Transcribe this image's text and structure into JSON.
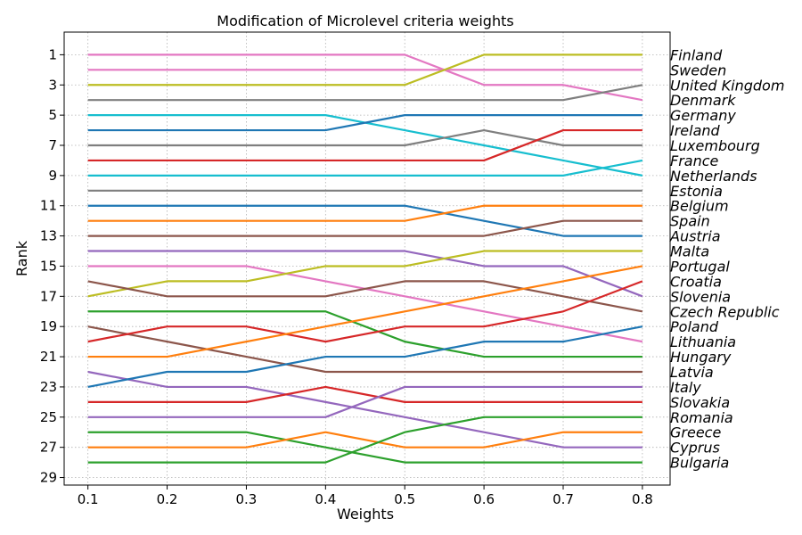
{
  "chart_data": {
    "type": "line",
    "title": "Modification of Microlevel criteria weights",
    "xlabel": "Weights",
    "ylabel": "Rank",
    "x": [
      0.1,
      0.2,
      0.3,
      0.4,
      0.5,
      0.6,
      0.7,
      0.8
    ],
    "xticks": [
      "0.1",
      "0.2",
      "0.3",
      "0.4",
      "0.5",
      "0.6",
      "0.7",
      "0.8"
    ],
    "yticks": [
      "1",
      "3",
      "5",
      "7",
      "9",
      "11",
      "13",
      "15",
      "17",
      "19",
      "21",
      "23",
      "25",
      "27",
      "29"
    ],
    "xlim": [
      0.07,
      0.835
    ],
    "ylim": [
      29.5,
      -0.5
    ],
    "y_inverted": true,
    "grid": true,
    "series": [
      {
        "color": "#e377c2",
        "values": [
          1,
          1,
          1,
          1,
          1,
          3,
          3,
          4
        ]
      },
      {
        "color": "#e377c2",
        "values": [
          2,
          2,
          2,
          2,
          2,
          2,
          2,
          2
        ]
      },
      {
        "color": "#bcbd22",
        "values": [
          3,
          3,
          3,
          3,
          3,
          1,
          1,
          1
        ]
      },
      {
        "color": "#7f7f7f",
        "values": [
          4,
          4,
          4,
          4,
          4,
          4,
          4,
          3
        ]
      },
      {
        "color": "#17becf",
        "values": [
          5,
          5,
          5,
          5,
          6,
          7,
          8,
          9
        ]
      },
      {
        "color": "#1f77b4",
        "values": [
          6,
          6,
          6,
          6,
          5,
          5,
          5,
          5
        ]
      },
      {
        "color": "#7f7f7f",
        "values": [
          7,
          7,
          7,
          7,
          7,
          6,
          7,
          7
        ]
      },
      {
        "color": "#d62728",
        "values": [
          8,
          8,
          8,
          8,
          8,
          8,
          6,
          6
        ]
      },
      {
        "color": "#17becf",
        "values": [
          9,
          9,
          9,
          9,
          9,
          9,
          9,
          8
        ]
      },
      {
        "color": "#7f7f7f",
        "values": [
          10,
          10,
          10,
          10,
          10,
          10,
          10,
          10
        ]
      },
      {
        "color": "#1f77b4",
        "values": [
          11,
          11,
          11,
          11,
          11,
          12,
          13,
          13
        ]
      },
      {
        "color": "#ff7f0e",
        "values": [
          12,
          12,
          12,
          12,
          12,
          11,
          11,
          11
        ]
      },
      {
        "color": "#8c564b",
        "values": [
          13,
          13,
          13,
          13,
          13,
          13,
          12,
          12
        ]
      },
      {
        "color": "#9467bd",
        "values": [
          14,
          14,
          14,
          14,
          14,
          15,
          15,
          17
        ]
      },
      {
        "color": "#e377c2",
        "values": [
          15,
          15,
          15,
          16,
          17,
          18,
          19,
          20
        ]
      },
      {
        "color": "#bcbd22",
        "values": [
          17,
          16,
          16,
          15,
          15,
          14,
          14,
          14
        ]
      },
      {
        "color": "#8c564b",
        "values": [
          16,
          17,
          17,
          17,
          16,
          16,
          17,
          18
        ]
      },
      {
        "color": "#2ca02c",
        "values": [
          18,
          18,
          18,
          18,
          20,
          21,
          21,
          21
        ]
      },
      {
        "color": "#8c564b",
        "values": [
          19,
          20,
          21,
          22,
          22,
          22,
          22,
          22
        ]
      },
      {
        "color": "#d62728",
        "values": [
          20,
          19,
          19,
          20,
          19,
          19,
          18,
          16
        ]
      },
      {
        "color": "#ff7f0e",
        "values": [
          21,
          21,
          20,
          19,
          18,
          17,
          16,
          15
        ]
      },
      {
        "color": "#9467bd",
        "values": [
          22,
          23,
          23,
          24,
          25,
          26,
          27,
          27
        ]
      },
      {
        "color": "#1f77b4",
        "values": [
          23,
          22,
          22,
          21,
          21,
          20,
          20,
          19
        ]
      },
      {
        "color": "#d62728",
        "values": [
          24,
          24,
          24,
          23,
          24,
          24,
          24,
          24
        ]
      },
      {
        "color": "#9467bd",
        "values": [
          25,
          25,
          25,
          25,
          23,
          23,
          23,
          23
        ]
      },
      {
        "color": "#2ca02c",
        "values": [
          26,
          26,
          26,
          27,
          28,
          28,
          28,
          28
        ]
      },
      {
        "color": "#ff7f0e",
        "values": [
          27,
          27,
          27,
          26,
          27,
          27,
          26,
          26
        ]
      },
      {
        "color": "#2ca02c",
        "values": [
          28,
          28,
          28,
          28,
          26,
          25,
          25,
          25
        ]
      }
    ],
    "right_labels": [
      "Finland",
      "Sweden",
      "United Kingdom",
      "Denmark",
      "Germany",
      "Ireland",
      "Luxembourg",
      "France",
      "Netherlands",
      "Estonia",
      "Belgium",
      "Spain",
      "Austria",
      "Malta",
      "Portugal",
      "Croatia",
      "Slovenia",
      "Czech Republic",
      "Poland",
      "Lithuania",
      "Hungary",
      "Latvia",
      "Italy",
      "Slovakia",
      "Romania",
      "Greece",
      "Cyprus",
      "Bulgaria"
    ]
  }
}
